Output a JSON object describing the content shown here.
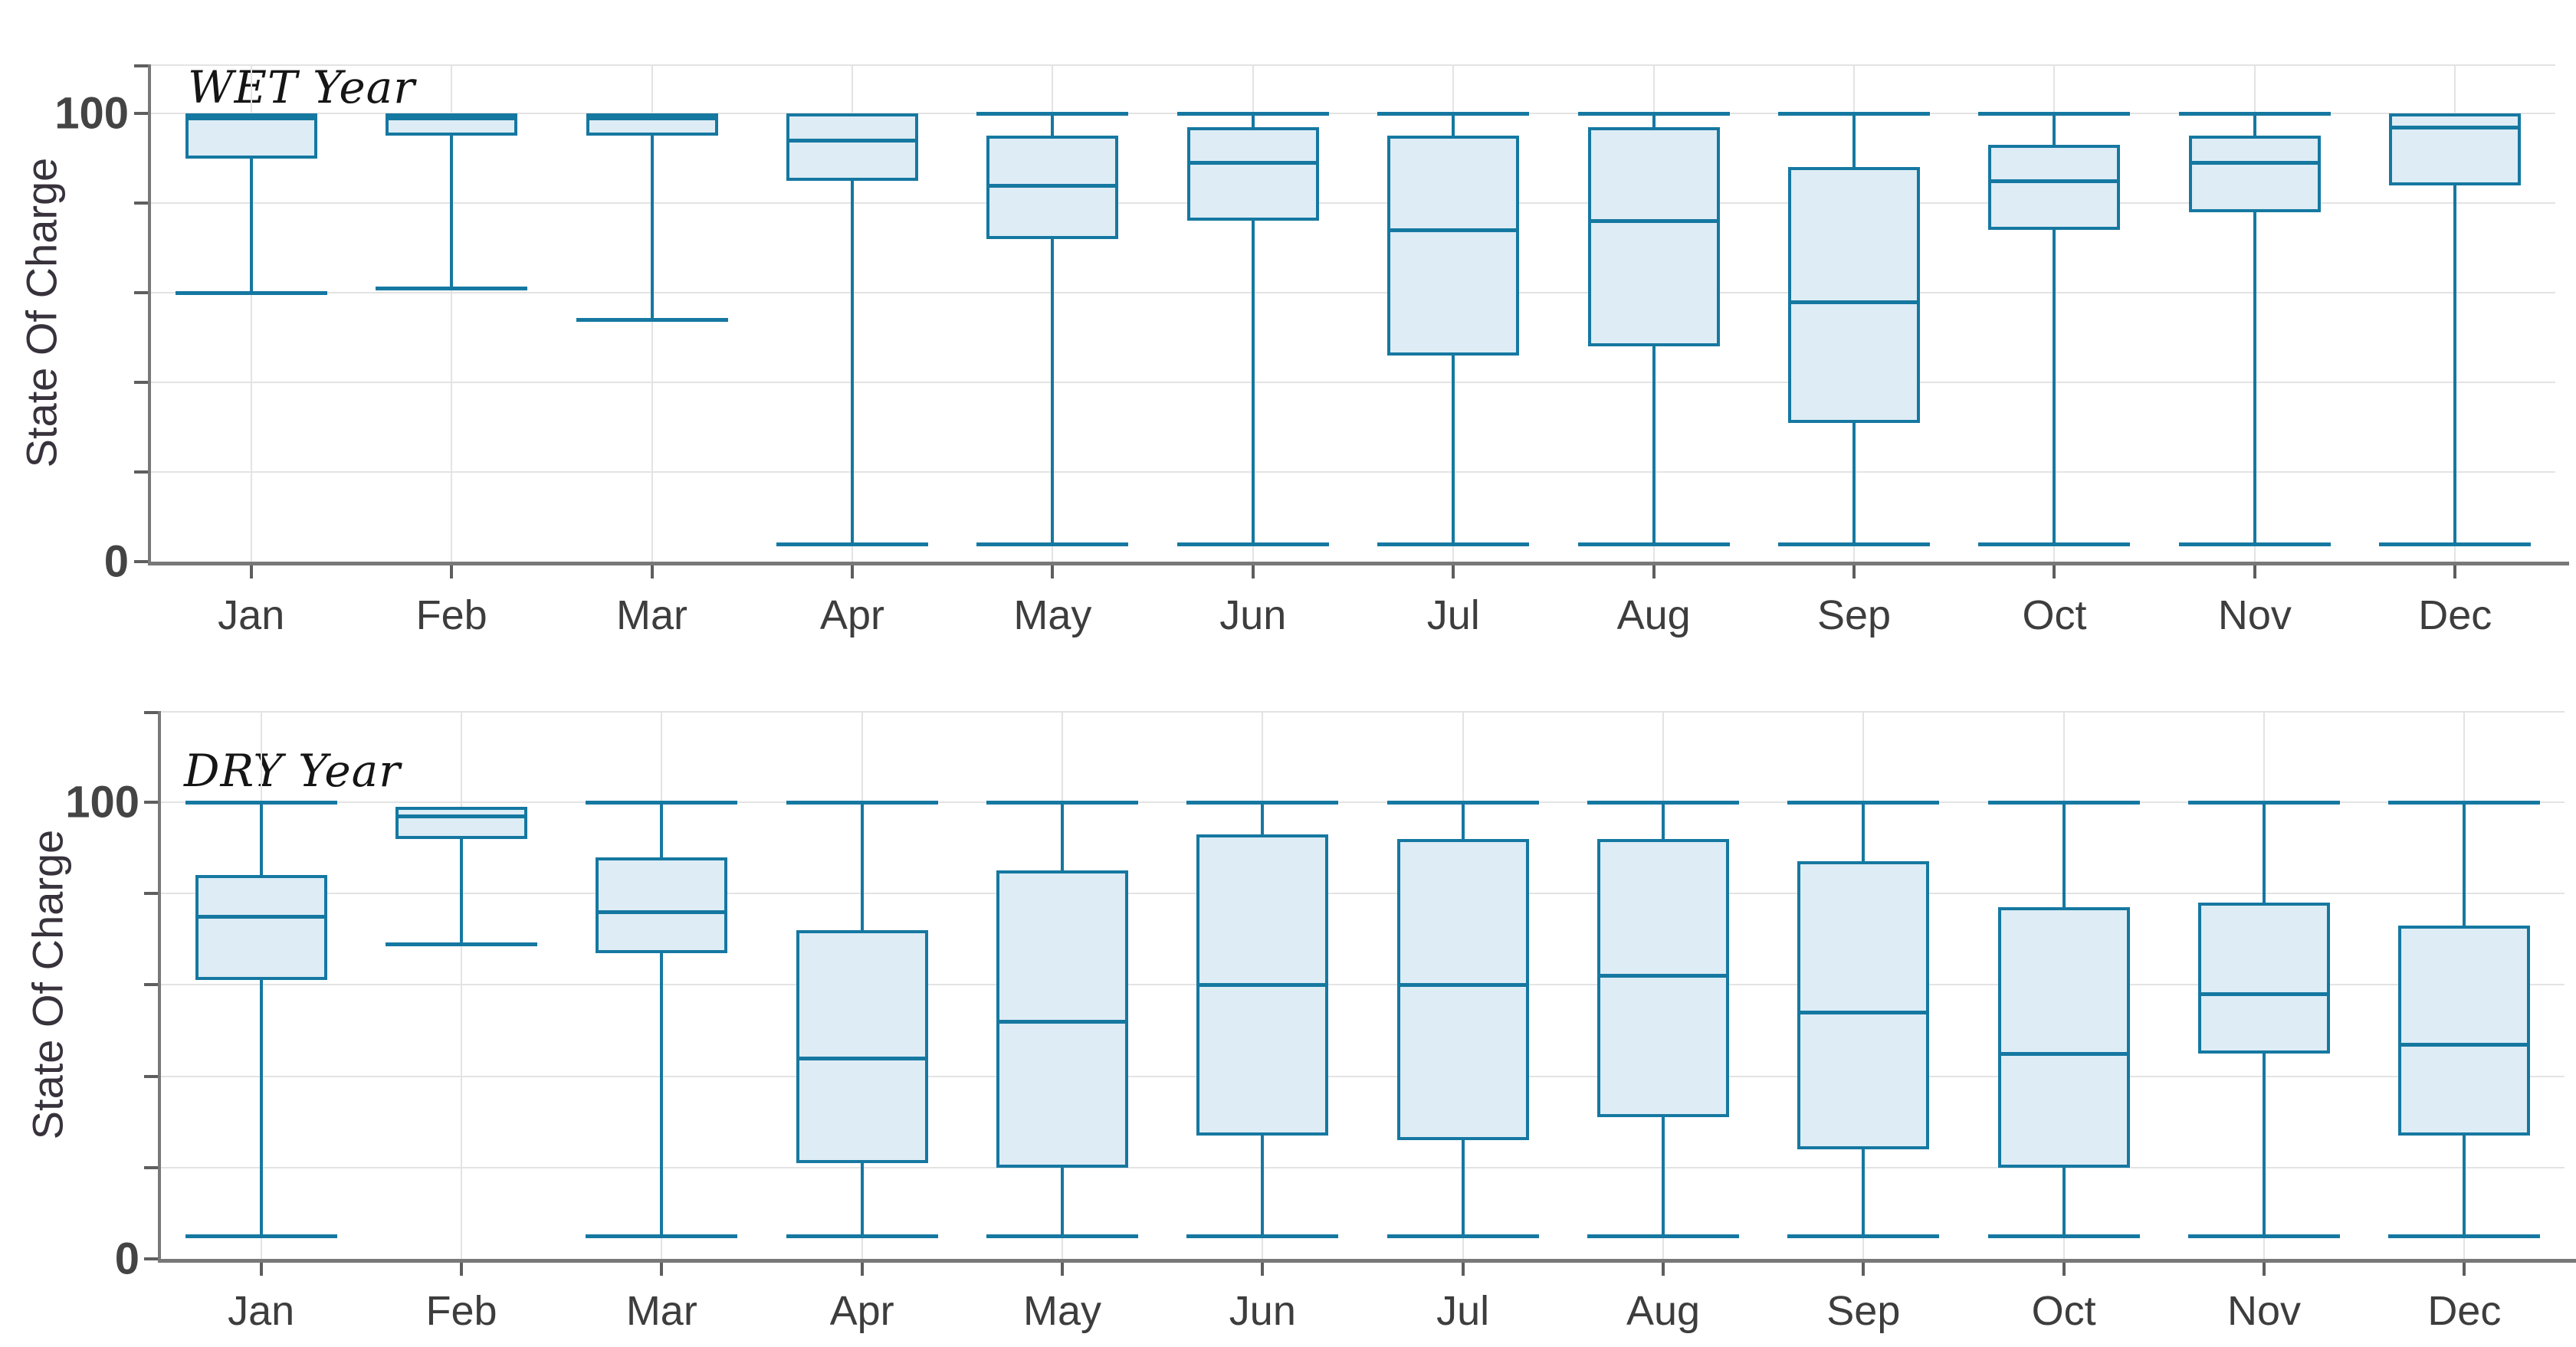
{
  "figure": {
    "background": "#ffffff",
    "accent_color": "#1578a1",
    "box_fill_color": "#ddecf5",
    "gridline_color": "#e3e3e3",
    "axis_color": "#787878",
    "text_color": "#3d3d3d"
  },
  "chart_data": [
    {
      "type": "box",
      "title": "WET Year",
      "xlabel": "",
      "ylabel": "State Of Charge",
      "ylim": [
        0,
        111
      ],
      "yticks": [
        0,
        20,
        40,
        60,
        80,
        100
      ],
      "ytick_labels_shown": [
        "0",
        "100"
      ],
      "grid": true,
      "legend": false,
      "categories": [
        "Jan",
        "Feb",
        "Mar",
        "Apr",
        "May",
        "Jun",
        "Jul",
        "Aug",
        "Sep",
        "Oct",
        "Nov",
        "Dec"
      ],
      "boxes": [
        {
          "month": "Jan",
          "lo": 60,
          "q1": 90,
          "med": 99,
          "q3": 100,
          "hi": null
        },
        {
          "month": "Feb",
          "lo": 61,
          "q1": 95,
          "med": 99,
          "q3": 100,
          "hi": null
        },
        {
          "month": "Mar",
          "lo": 54,
          "q1": 95,
          "med": 99,
          "q3": 100,
          "hi": null
        },
        {
          "month": "Apr",
          "lo": 4,
          "q1": 85,
          "med": 94,
          "q3": 100,
          "hi": null
        },
        {
          "month": "May",
          "lo": 4,
          "q1": 72,
          "med": 84,
          "q3": 95,
          "hi": 100
        },
        {
          "month": "Jun",
          "lo": 4,
          "q1": 76,
          "med": 89,
          "q3": 97,
          "hi": 100
        },
        {
          "month": "Jul",
          "lo": 4,
          "q1": 46,
          "med": 74,
          "q3": 95,
          "hi": 100
        },
        {
          "month": "Aug",
          "lo": 4,
          "q1": 48,
          "med": 76,
          "q3": 97,
          "hi": 100
        },
        {
          "month": "Sep",
          "lo": 4,
          "q1": 31,
          "med": 58,
          "q3": 88,
          "hi": 100
        },
        {
          "month": "Oct",
          "lo": 4,
          "q1": 74,
          "med": 85,
          "q3": 93,
          "hi": 100
        },
        {
          "month": "Nov",
          "lo": 4,
          "q1": 78,
          "med": 89,
          "q3": 95,
          "hi": 100
        },
        {
          "month": "Dec",
          "lo": 4,
          "q1": 84,
          "med": 97,
          "q3": 100,
          "hi": null
        }
      ]
    },
    {
      "type": "box",
      "title": "DRY Year",
      "xlabel": "",
      "ylabel": "State Of Charge",
      "ylim": [
        0,
        120
      ],
      "yticks": [
        0,
        20,
        40,
        60,
        80,
        100
      ],
      "ytick_labels_shown": [
        "0",
        "100"
      ],
      "grid": true,
      "legend": false,
      "categories": [
        "Jan",
        "Feb",
        "Mar",
        "Apr",
        "May",
        "Jun",
        "Jul",
        "Aug",
        "Sep",
        "Oct",
        "Nov",
        "Dec"
      ],
      "boxes": [
        {
          "month": "Jan",
          "lo": 5,
          "q1": 61,
          "med": 75,
          "q3": 84,
          "hi": 100
        },
        {
          "month": "Feb",
          "lo": 69,
          "q1": 92,
          "med": 97,
          "q3": 99,
          "hi": null
        },
        {
          "month": "Mar",
          "lo": 5,
          "q1": 67,
          "med": 76,
          "q3": 88,
          "hi": 100
        },
        {
          "month": "Apr",
          "lo": 5,
          "q1": 21,
          "med": 44,
          "q3": 72,
          "hi": 100
        },
        {
          "month": "May",
          "lo": 5,
          "q1": 20,
          "med": 52,
          "q3": 85,
          "hi": 100
        },
        {
          "month": "Jun",
          "lo": 5,
          "q1": 27,
          "med": 60,
          "q3": 93,
          "hi": 100
        },
        {
          "month": "Jul",
          "lo": 5,
          "q1": 26,
          "med": 60,
          "q3": 92,
          "hi": 100
        },
        {
          "month": "Aug",
          "lo": 5,
          "q1": 31,
          "med": 62,
          "q3": 92,
          "hi": 100
        },
        {
          "month": "Sep",
          "lo": 5,
          "q1": 24,
          "med": 54,
          "q3": 87,
          "hi": 100
        },
        {
          "month": "Oct",
          "lo": 5,
          "q1": 20,
          "med": 45,
          "q3": 77,
          "hi": 100
        },
        {
          "month": "Nov",
          "lo": 5,
          "q1": 45,
          "med": 58,
          "q3": 78,
          "hi": 100
        },
        {
          "month": "Dec",
          "lo": 5,
          "q1": 27,
          "med": 47,
          "q3": 73,
          "hi": 100
        }
      ]
    }
  ]
}
